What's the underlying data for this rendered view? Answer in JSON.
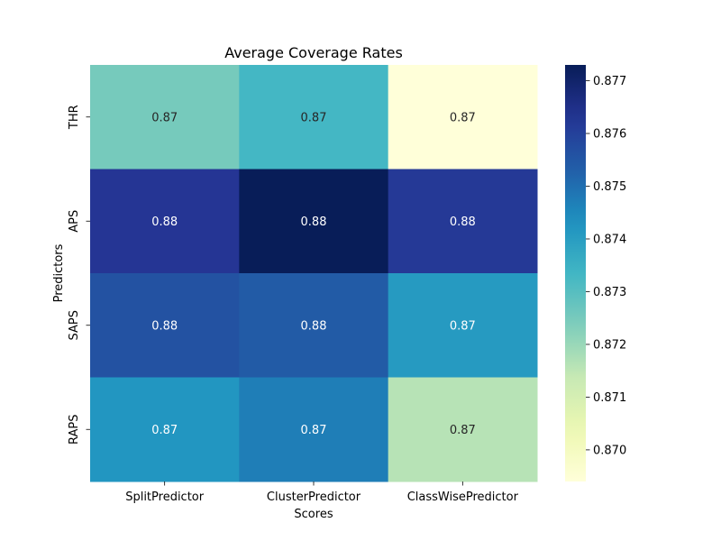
{
  "chart_data": {
    "type": "heatmap",
    "title": "Average Coverage Rates",
    "xlabel": "Scores",
    "ylabel": "Predictors",
    "x_categories": [
      "SplitPredictor",
      "ClusterPredictor",
      "ClassWisePredictor"
    ],
    "y_categories": [
      "THR",
      "APS",
      "SAPS",
      "RAPS"
    ],
    "values": [
      [
        0.8725,
        0.8733,
        0.8694
      ],
      [
        0.8763,
        0.8773,
        0.8762
      ],
      [
        0.8756,
        0.8754,
        0.8741
      ],
      [
        0.8742,
        0.8747,
        0.8716
      ]
    ],
    "cell_labels": [
      [
        "0.87",
        "0.87",
        "0.87"
      ],
      [
        "0.88",
        "0.88",
        "0.88"
      ],
      [
        "0.88",
        "0.88",
        "0.87"
      ],
      [
        "0.87",
        "0.87",
        "0.87"
      ]
    ],
    "colormap": "YlGnBu",
    "colorbar": {
      "vmin": 0.8694,
      "vmax": 0.8773,
      "ticks": [
        0.87,
        0.871,
        0.872,
        0.873,
        0.874,
        0.875,
        0.876,
        0.877
      ],
      "tick_labels": [
        "0.870",
        "0.871",
        "0.872",
        "0.873",
        "0.874",
        "0.875",
        "0.876",
        "0.877"
      ]
    }
  }
}
